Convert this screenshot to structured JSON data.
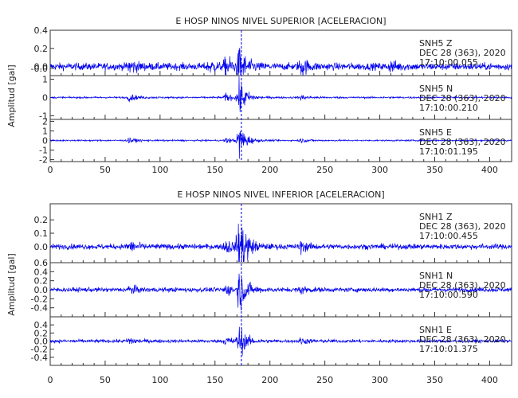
{
  "chart_data": [
    {
      "type": "line",
      "title": "E HOSP NINOS NIVEL SUPERIOR [ACELERACION]",
      "ylabel": "Amplitud [gal]",
      "xlim": [
        0,
        420
      ],
      "xticks": [
        0,
        50,
        100,
        150,
        200,
        250,
        300,
        350,
        400
      ],
      "event_time": 174,
      "line_color": "#0000ee",
      "panels": [
        {
          "ylim": [
            -0.1,
            0.4
          ],
          "yticks": [
            "-0.0",
            "0.0",
            "0.2",
            "0.4"
          ],
          "ytick_values": [
            -0.02,
            0.0,
            0.2,
            0.4
          ],
          "noise": 0.04,
          "bursts": [
            [
              72,
              0.08
            ],
            [
              145,
              0.06
            ],
            [
              160,
              0.12
            ],
            [
              172,
              0.2
            ],
            [
              228,
              0.1
            ],
            [
              310,
              0.05
            ]
          ],
          "labels": [
            "SNH5   Z",
            "DEC 28 (363), 2020",
            "17:10:00.055"
          ]
        },
        {
          "ylim": [
            -1.2,
            1.2
          ],
          "yticks": [
            "-1",
            "0",
            "1"
          ],
          "ytick_values": [
            -1,
            0,
            1
          ],
          "noise": 0.05,
          "bursts": [
            [
              72,
              0.2
            ],
            [
              160,
              0.25
            ],
            [
              172,
              1.1
            ],
            [
              228,
              0.15
            ]
          ],
          "labels": [
            "SNH5   N",
            "DEC 28 (363), 2020",
            "17:10:00.210"
          ]
        },
        {
          "ylim": [
            -2.2,
            2.2
          ],
          "yticks": [
            "-2",
            "-1",
            "0",
            "1",
            "2"
          ],
          "ytick_values": [
            -2,
            -1,
            0,
            1,
            2
          ],
          "noise": 0.08,
          "bursts": [
            [
              72,
              0.3
            ],
            [
              160,
              0.3
            ],
            [
              172,
              1.9
            ],
            [
              228,
              0.2
            ]
          ],
          "labels": [
            "SNH5   E",
            "DEC 28 (363), 2020",
            "17:10:01.195"
          ]
        }
      ]
    },
    {
      "type": "line",
      "title": "E HOSP NINOS NIVEL INFERIOR [ACELERACION]",
      "ylabel": "Amplitud [gal]",
      "xlim": [
        0,
        420
      ],
      "xticks": [
        0,
        50,
        100,
        150,
        200,
        250,
        300,
        350,
        400
      ],
      "event_time": 174,
      "line_color": "#0000ee",
      "panels": [
        {
          "ylim": [
            -0.12,
            0.32
          ],
          "yticks": [
            "0.0",
            "0.1",
            "0.2"
          ],
          "ytick_values": [
            0.0,
            0.1,
            0.2
          ],
          "noise": 0.02,
          "bursts": [
            [
              72,
              0.04
            ],
            [
              160,
              0.06
            ],
            [
              172,
              0.3
            ],
            [
              228,
              0.04
            ]
          ],
          "labels": [
            "SNH1   Z",
            "DEC 28 (363), 2020",
            "17:10:00.455"
          ]
        },
        {
          "ylim": [
            -0.6,
            0.6
          ],
          "yticks": [
            "-0.4",
            "-0.2",
            "0.0",
            "0.2",
            "0.4",
            "0.6"
          ],
          "ytick_values": [
            -0.4,
            -0.2,
            0.0,
            0.2,
            0.4,
            0.6
          ],
          "noise": 0.05,
          "bursts": [
            [
              72,
              0.1
            ],
            [
              160,
              0.12
            ],
            [
              172,
              0.5
            ],
            [
              228,
              0.08
            ]
          ],
          "labels": [
            "SNH1   N",
            "DEC 28 (363), 2020",
            "17:10:00.590"
          ]
        },
        {
          "ylim": [
            -0.6,
            0.6
          ],
          "yticks": [
            "-0.4",
            "-0.2",
            "0.0",
            "0.2",
            "0.4"
          ],
          "ytick_values": [
            -0.4,
            -0.2,
            0.0,
            0.2,
            0.4
          ],
          "noise": 0.04,
          "bursts": [
            [
              72,
              0.1
            ],
            [
              160,
              0.12
            ],
            [
              172,
              0.4
            ],
            [
              228,
              0.08
            ]
          ],
          "labels": [
            "SNH1   E",
            "DEC 28 (363), 2020",
            "17:10:01.375"
          ]
        }
      ]
    }
  ]
}
